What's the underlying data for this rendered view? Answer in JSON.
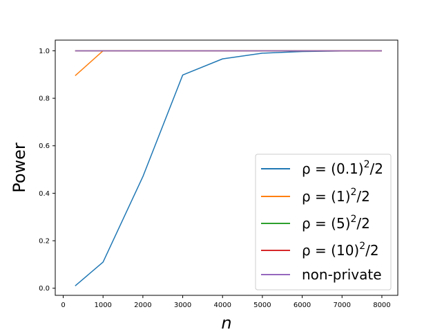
{
  "chart_data": {
    "type": "line",
    "xlabel": "n",
    "ylabel": "Power",
    "xlim": [
      -200,
      8400
    ],
    "ylim": [
      -0.03,
      1.045
    ],
    "xticks": [
      0,
      1000,
      2000,
      3000,
      4000,
      5000,
      6000,
      7000,
      8000
    ],
    "xtick_labels": [
      "0",
      "1000",
      "2000",
      "3000",
      "4000",
      "5000",
      "6000",
      "7000",
      "8000"
    ],
    "yticks": [
      0.0,
      0.2,
      0.4,
      0.6,
      0.8,
      1.0
    ],
    "ytick_labels": [
      "0.0",
      "0.2",
      "0.4",
      "0.6",
      "0.8",
      "1.0"
    ],
    "legend_position": "lower-right",
    "grid": false,
    "series": [
      {
        "name": "ρ = (0.1)^2/2",
        "color": "#1f77b4",
        "x": [
          300,
          1000,
          2000,
          3000,
          4000,
          5000,
          6000,
          7000,
          8000
        ],
        "y": [
          0.01,
          0.11,
          0.47,
          0.898,
          0.966,
          0.99,
          0.997,
          0.999,
          1.0
        ]
      },
      {
        "name": "ρ = (1)^2/2",
        "color": "#ff7f0e",
        "x": [
          300,
          1000,
          2000,
          3000,
          4000,
          5000,
          6000,
          7000,
          8000
        ],
        "y": [
          0.895,
          1.0,
          1.0,
          1.0,
          1.0,
          1.0,
          1.0,
          1.0,
          1.0
        ]
      },
      {
        "name": "ρ = (5)^2/2",
        "color": "#2ca02c",
        "x": [
          300,
          1000,
          2000,
          3000,
          4000,
          5000,
          6000,
          7000,
          8000
        ],
        "y": [
          1.0,
          1.0,
          1.0,
          1.0,
          1.0,
          1.0,
          1.0,
          1.0,
          1.0
        ]
      },
      {
        "name": "ρ = (10)^2/2",
        "color": "#d62728",
        "x": [
          300,
          1000,
          2000,
          3000,
          4000,
          5000,
          6000,
          7000,
          8000
        ],
        "y": [
          1.0,
          1.0,
          1.0,
          1.0,
          1.0,
          1.0,
          1.0,
          1.0,
          1.0
        ]
      },
      {
        "name": "non-private",
        "color": "#9467bd",
        "x": [
          300,
          1000,
          2000,
          3000,
          4000,
          5000,
          6000,
          7000,
          8000
        ],
        "y": [
          1.0,
          1.0,
          1.0,
          1.0,
          1.0,
          1.0,
          1.0,
          1.0,
          1.0
        ]
      }
    ],
    "legend_labels": [
      {
        "pre": "ρ = (0.1)",
        "sup": "2",
        "post": "/2"
      },
      {
        "pre": "ρ = (1)",
        "sup": "2",
        "post": "/2"
      },
      {
        "pre": "ρ = (5)",
        "sup": "2",
        "post": "/2"
      },
      {
        "pre": "ρ = (10)",
        "sup": "2",
        "post": "/2"
      },
      {
        "pre": "non-private",
        "sup": "",
        "post": ""
      }
    ]
  }
}
